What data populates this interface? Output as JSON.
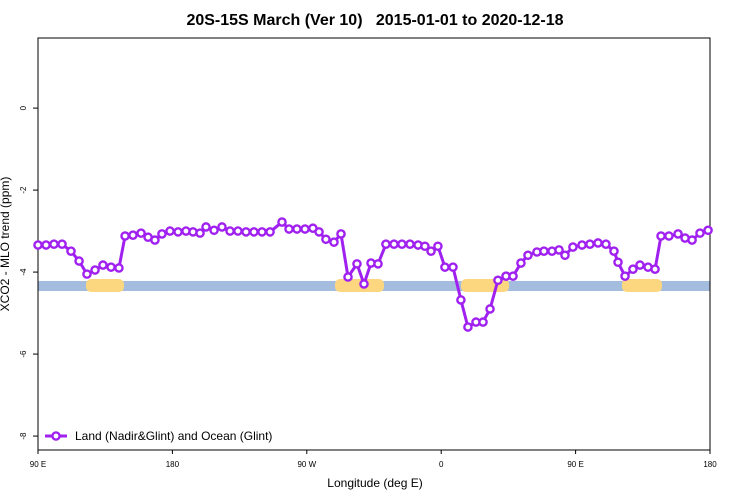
{
  "chart_data": {
    "type": "line",
    "title": "20S-15S March (Ver 10)   2015-01-01 to 2020-12-18",
    "x_label": "Longitude (deg E)",
    "y_label": "XCO2 - MLO trend (ppm)",
    "xlim": [
      90,
      540
    ],
    "xticks": [
      {
        "value": 90,
        "label": "90 E"
      },
      {
        "value": 180,
        "label": "180"
      },
      {
        "value": 270,
        "label": "90 W"
      },
      {
        "value": 360,
        "label": "0"
      },
      {
        "value": 450,
        "label": "90 E"
      },
      {
        "value": 540,
        "label": "180"
      }
    ],
    "ylim": [
      -8.34,
      1.71
    ],
    "yticks": [
      -8,
      -6,
      -4,
      -2,
      0
    ],
    "legend": "bottom-left",
    "series": [
      {
        "name": "Land (Nadir&Glint) and Ocean (Glint)",
        "color": "#a020f0",
        "x": [
          90,
          95.4,
          100.7,
          106.1,
          112.1,
          117.5,
          122.8,
          128.2,
          133.5,
          138.9,
          144.2,
          148.3,
          153.6,
          159.0,
          163.7,
          168.3,
          173.0,
          178.4,
          183.8,
          189.1,
          193.8,
          198.5,
          202.5,
          207.9,
          213.2,
          218.6,
          223.9,
          229.3,
          234.6,
          240.0,
          245.4,
          253.4,
          258.1,
          263.4,
          268.8,
          274.1,
          278.2,
          282.8,
          288.2,
          292.9,
          297.6,
          303.6,
          308.3,
          313.0,
          317.7,
          323.0,
          328.4,
          333.7,
          339.1,
          344.5,
          349.1,
          353.2,
          357.8,
          362.5,
          367.9,
          373.2,
          377.9,
          383.3,
          388.0,
          392.7,
          398.0,
          403.4,
          408.1,
          413.4,
          418.1,
          424.1,
          428.8,
          434.2,
          438.9,
          442.9,
          448.2,
          454.3,
          459.6,
          465.0,
          470.3,
          475.7,
          478.4,
          483.1,
          488.4,
          493.1,
          498.5,
          503.2,
          507.2,
          512.5,
          518.6,
          523.3,
          528.0,
          533.3,
          538.7
        ],
        "values": [
          -3.34,
          -3.34,
          -3.32,
          -3.32,
          -3.49,
          -3.73,
          -4.05,
          -3.95,
          -3.83,
          -3.88,
          -3.9,
          -3.12,
          -3.1,
          -3.05,
          -3.15,
          -3.22,
          -3.07,
          -3.0,
          -3.02,
          -3.0,
          -3.02,
          -3.05,
          -2.9,
          -2.98,
          -2.9,
          -3.0,
          -3.0,
          -3.02,
          -3.02,
          -3.02,
          -3.02,
          -2.78,
          -2.95,
          -2.95,
          -2.95,
          -2.93,
          -3.02,
          -3.2,
          -3.27,
          -3.07,
          -4.12,
          -3.8,
          -4.29,
          -3.78,
          -3.8,
          -3.32,
          -3.32,
          -3.32,
          -3.32,
          -3.34,
          -3.37,
          -3.49,
          -3.37,
          -3.88,
          -3.88,
          -4.68,
          -5.34,
          -5.22,
          -5.22,
          -4.9,
          -4.2,
          -4.1,
          -4.1,
          -3.78,
          -3.59,
          -3.51,
          -3.49,
          -3.49,
          -3.46,
          -3.59,
          -3.39,
          -3.34,
          -3.32,
          -3.29,
          -3.32,
          -3.49,
          -3.76,
          -4.1,
          -3.93,
          -3.83,
          -3.88,
          -3.93,
          -3.12,
          -3.12,
          -3.07,
          -3.17,
          -3.22,
          -3.05,
          -2.98
        ]
      }
    ]
  }
}
